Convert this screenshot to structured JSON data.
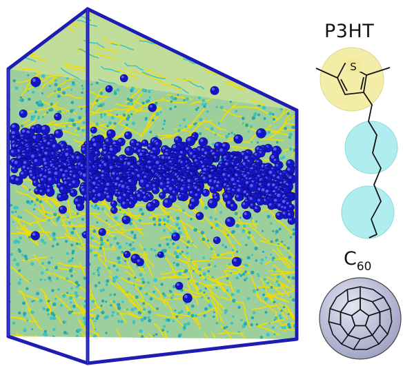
{
  "labels": {
    "polymer": "P3HT",
    "fullerene_base": "C",
    "fullerene_subscript": "60",
    "thiophene_atom": "S"
  },
  "colors": {
    "box_frame": "#1d1db4",
    "polymer_chain": "#f0dc00",
    "side_chain_bead": "#3cc4c4",
    "fullerene_bead": "#1515c8",
    "thiophene_highlight": "#f2ea9a",
    "alkyl_bead_highlight": "#a8ecee",
    "c60_fill": "#b6b8d6"
  },
  "icons": {
    "simulation_box": "md-simulation-box",
    "p3ht_monomer": "p3ht-coarse-grained-monomer",
    "c60_molecule": "c60-fullerene-icon"
  }
}
